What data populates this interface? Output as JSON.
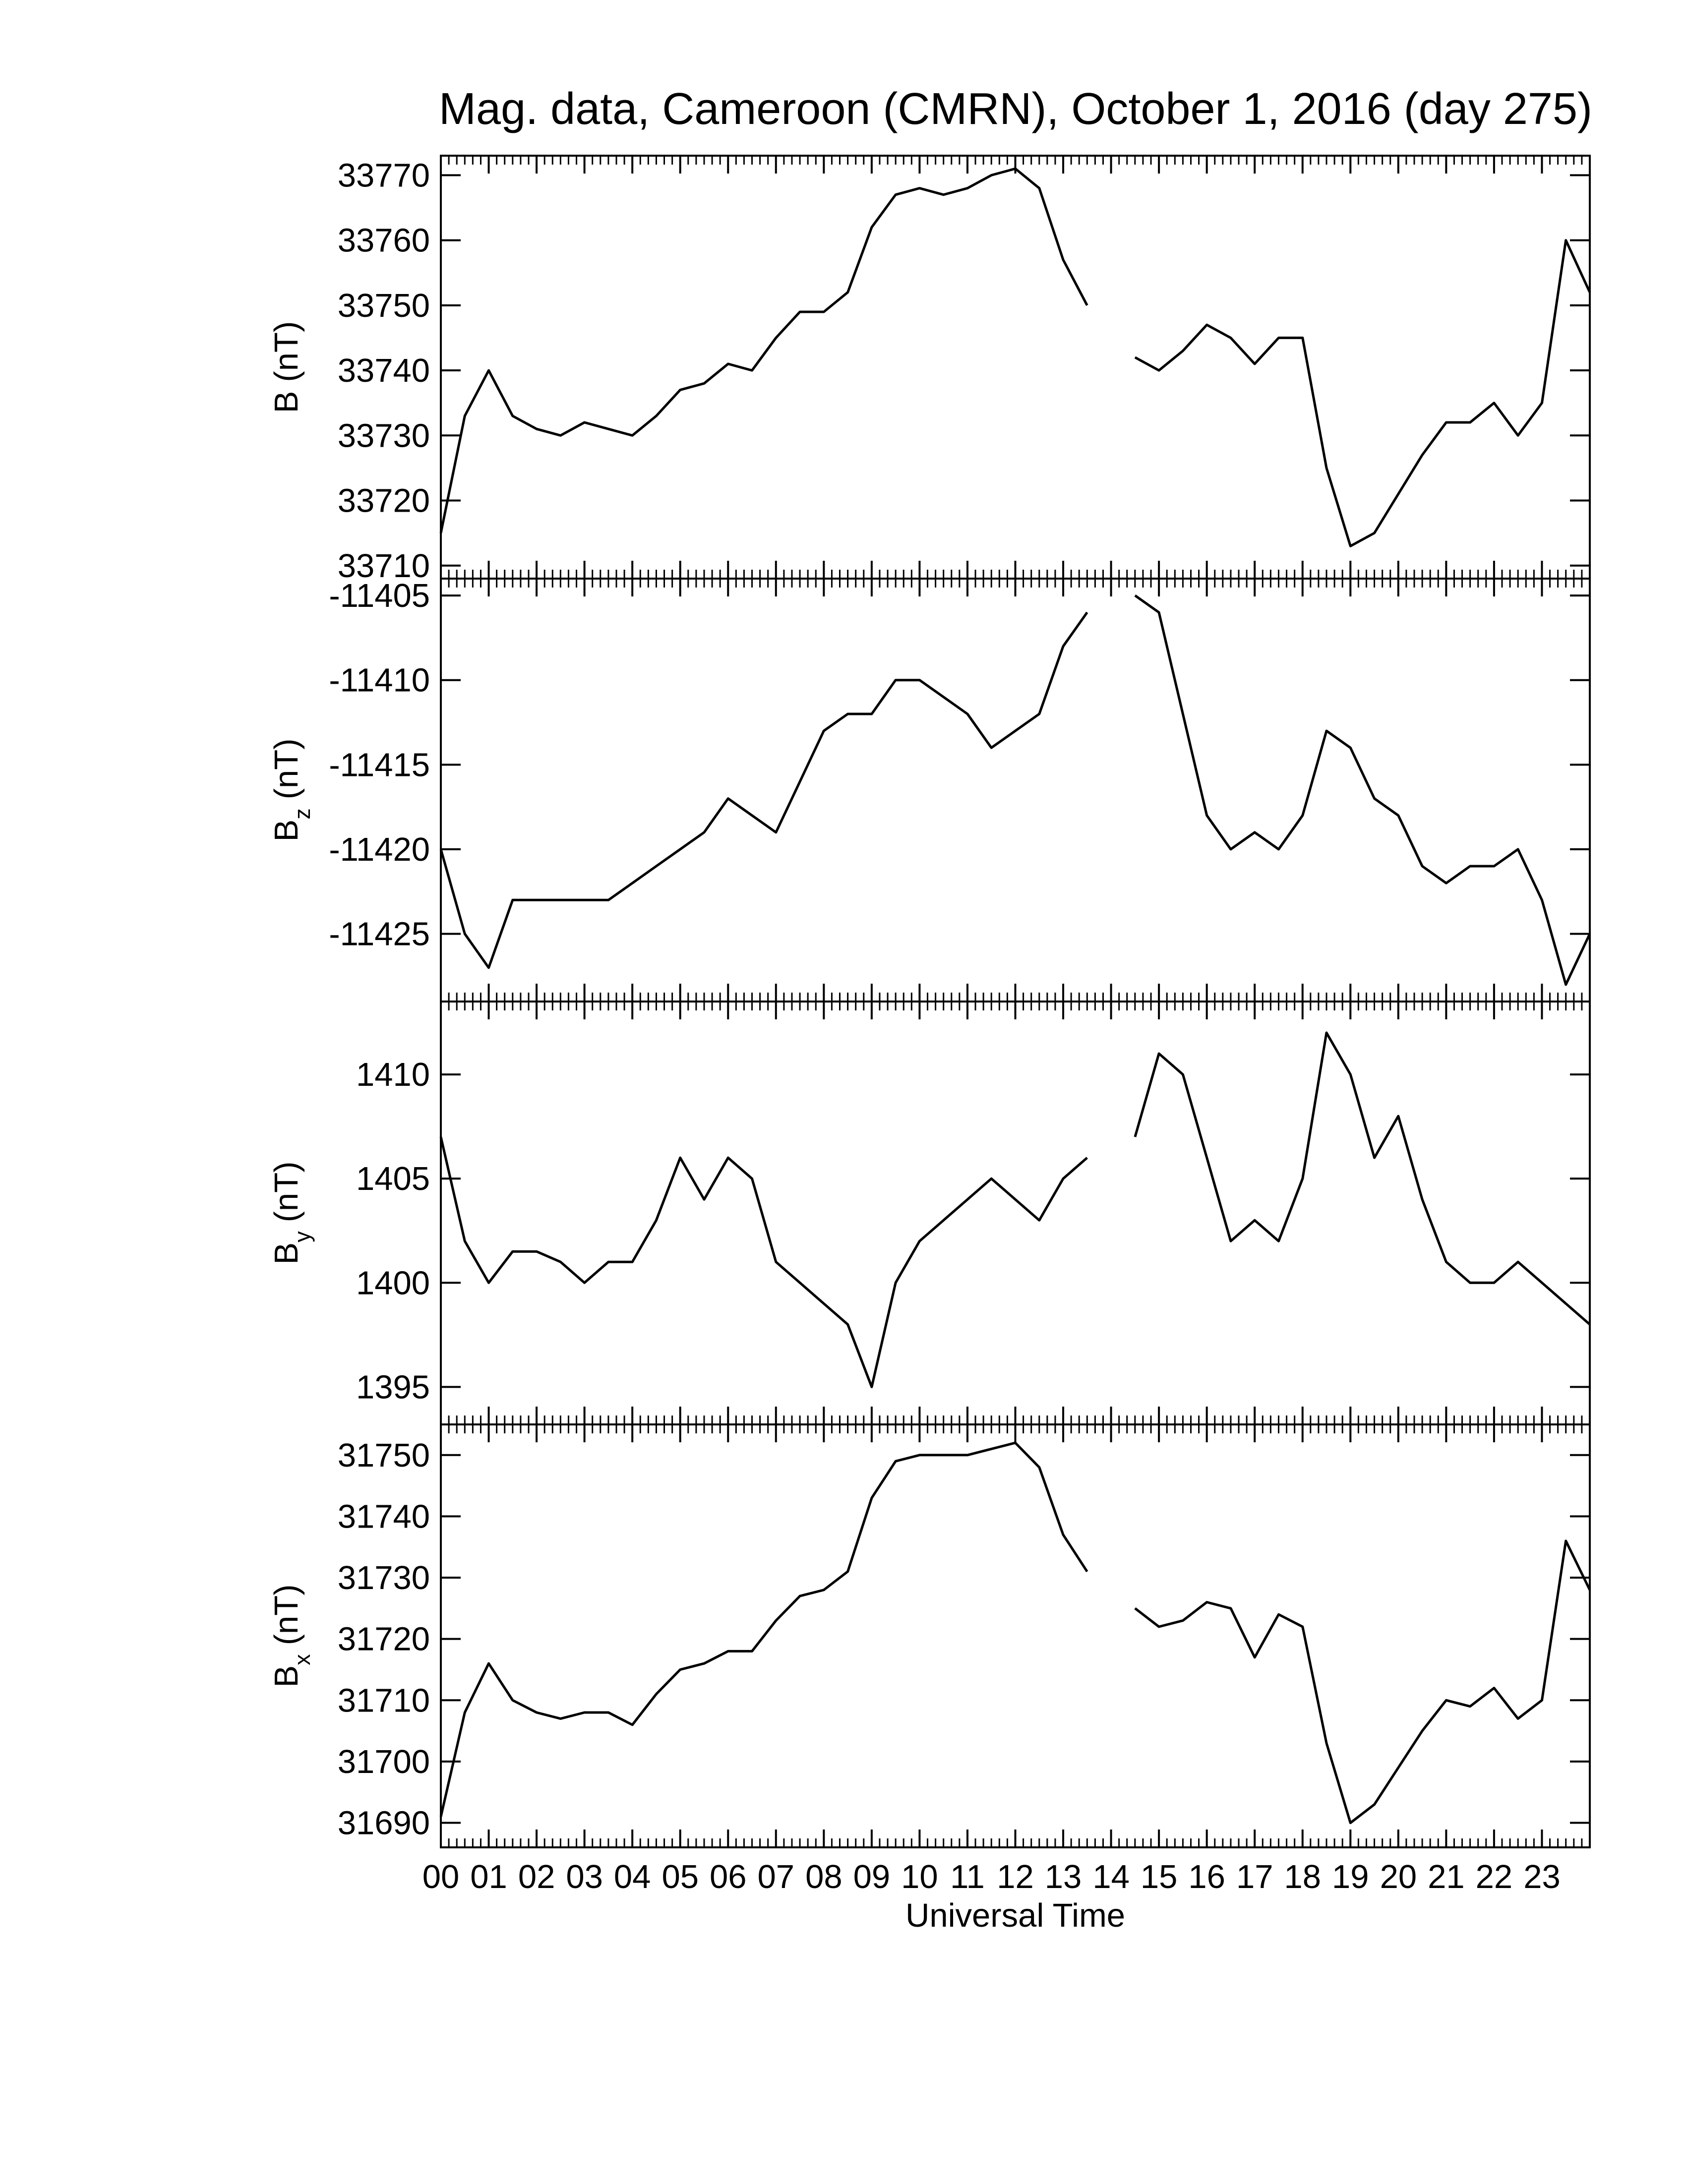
{
  "chart_data": [
    {
      "type": "line",
      "title": "Mag. data, Cameroon (CMRN), October 1, 2016 (day 275)",
      "ylabel": {
        "base": "B",
        "unit": "(nT)"
      },
      "x": [
        0,
        0.5,
        1,
        1.5,
        2,
        2.5,
        3,
        3.5,
        4,
        4.5,
        5,
        5.5,
        6,
        6.5,
        7,
        7.5,
        8,
        8.5,
        9,
        9.5,
        10,
        10.5,
        11,
        11.5,
        12,
        12.5,
        13,
        13.5,
        14,
        14.5,
        15,
        15.5,
        16,
        16.5,
        17,
        17.5,
        18,
        18.5,
        19,
        19.5,
        20,
        20.5,
        21,
        21.5,
        22,
        22.5,
        23,
        23.5,
        24
      ],
      "values": [
        33715,
        33733,
        33740,
        33733,
        33731,
        33730,
        33732,
        33731,
        33730,
        33733,
        33737,
        33738,
        33741,
        33740,
        33745,
        33749,
        33749,
        33752,
        33762,
        33767,
        33768,
        33767,
        33768,
        33770,
        33771,
        33768,
        33757,
        33750,
        null,
        33742,
        33740,
        33743,
        33747,
        33745,
        33741,
        33745,
        33745,
        33725,
        33713,
        33715,
        33721,
        33727,
        33732,
        33732,
        33735,
        33730,
        33735,
        33760,
        33752
      ],
      "color": "#000000",
      "xlim": [
        0,
        24
      ],
      "ylim": [
        33708,
        33773
      ],
      "yticks": [
        33710,
        33720,
        33730,
        33740,
        33750,
        33760,
        33770
      ]
    },
    {
      "type": "line",
      "ylabel": {
        "base": "B",
        "sub": "z",
        "unit": "(nT)"
      },
      "x": [
        0,
        0.5,
        1,
        1.5,
        2,
        2.5,
        3,
        3.5,
        4,
        4.5,
        5,
        5.5,
        6,
        6.5,
        7,
        7.5,
        8,
        8.5,
        9,
        9.5,
        10,
        10.5,
        11,
        11.5,
        12,
        12.5,
        13,
        13.5,
        14,
        14.5,
        15,
        15.5,
        16,
        16.5,
        17,
        17.5,
        18,
        18.5,
        19,
        19.5,
        20,
        20.5,
        21,
        21.5,
        22,
        22.5,
        23,
        23.5,
        24
      ],
      "values": [
        -11420,
        -11425,
        -11427,
        -11423,
        -11423,
        -11423,
        -11423,
        -11423,
        -11422,
        -11421,
        -11420,
        -11419,
        -11417,
        -11418,
        -11419,
        -11416,
        -11413,
        -11412,
        -11412,
        -11410,
        -11410,
        -11411,
        -11412,
        -11414,
        -11413,
        -11412,
        -11408,
        -11406,
        null,
        -11405,
        -11406,
        -11412,
        -11418,
        -11420,
        -11419,
        -11420,
        -11418,
        -11413,
        -11414,
        -11417,
        -11418,
        -11421,
        -11422,
        -11421,
        -11421,
        -11420,
        -11423,
        -11428,
        -11425
      ],
      "color": "#000000",
      "xlim": [
        0,
        24
      ],
      "ylim": [
        -11429,
        -11404
      ],
      "yticks": [
        -11425,
        -11420,
        -11415,
        -11410,
        -11405
      ]
    },
    {
      "type": "line",
      "ylabel": {
        "base": "B",
        "sub": "y",
        "unit": "(nT)"
      },
      "x": [
        0,
        0.5,
        1,
        1.5,
        2,
        2.5,
        3,
        3.5,
        4,
        4.5,
        5,
        5.5,
        6,
        6.5,
        7,
        7.5,
        8,
        8.5,
        9,
        9.5,
        10,
        10.5,
        11,
        11.5,
        12,
        12.5,
        13,
        13.5,
        14,
        14.5,
        15,
        15.5,
        16,
        16.5,
        17,
        17.5,
        18,
        18.5,
        19,
        19.5,
        20,
        20.5,
        21,
        21.5,
        22,
        22.5,
        23,
        23.5,
        24
      ],
      "values": [
        1407,
        1402,
        1400,
        1401.5,
        1401.5,
        1401,
        1400,
        1401,
        1401,
        1403,
        1406,
        1404,
        1406,
        1405,
        1401,
        1400,
        1399,
        1398,
        1395,
        1400,
        1402,
        1403,
        1404,
        1405,
        1404,
        1403,
        1405,
        1406,
        null,
        1407,
        1411,
        1410,
        1406,
        1402,
        1403,
        1402,
        1405,
        1412,
        1410,
        1406,
        1408,
        1404,
        1401,
        1400,
        1400,
        1401,
        1400,
        1399,
        1398
      ],
      "color": "#000000",
      "xlim": [
        0,
        24
      ],
      "ylim": [
        1393.2,
        1413.5
      ],
      "yticks": [
        1395,
        1400,
        1405,
        1410
      ]
    },
    {
      "type": "line",
      "ylabel": {
        "base": "B",
        "sub": "x",
        "unit": "(nT)"
      },
      "xlabel": "Universal Time",
      "x": [
        0,
        0.5,
        1,
        1.5,
        2,
        2.5,
        3,
        3.5,
        4,
        4.5,
        5,
        5.5,
        6,
        6.5,
        7,
        7.5,
        8,
        8.5,
        9,
        9.5,
        10,
        10.5,
        11,
        11.5,
        12,
        12.5,
        13,
        13.5,
        14,
        14.5,
        15,
        15.5,
        16,
        16.5,
        17,
        17.5,
        18,
        18.5,
        19,
        19.5,
        20,
        20.5,
        21,
        21.5,
        22,
        22.5,
        23,
        23.5,
        24
      ],
      "values": [
        31691,
        31708,
        31716,
        31710,
        31708,
        31707,
        31708,
        31708,
        31706,
        31711,
        31715,
        31716,
        31718,
        31718,
        31723,
        31727,
        31728,
        31731,
        31743,
        31749,
        31750,
        31750,
        31750,
        31751,
        31752,
        31748,
        31737,
        31731,
        null,
        31725,
        31722,
        31723,
        31726,
        31725,
        31717,
        31724,
        31722,
        31703,
        31690,
        31693,
        31699,
        31705,
        31710,
        31709,
        31712,
        31707,
        31710,
        31736,
        31728
      ],
      "color": "#000000",
      "xlim": [
        0,
        24
      ],
      "ylim": [
        31686,
        31755
      ],
      "yticks": [
        31690,
        31700,
        31710,
        31720,
        31730,
        31740,
        31750
      ],
      "xticks": [
        {
          "value": 0,
          "label": "00"
        },
        {
          "value": 1,
          "label": "01"
        },
        {
          "value": 2,
          "label": "02"
        },
        {
          "value": 3,
          "label": "03"
        },
        {
          "value": 4,
          "label": "04"
        },
        {
          "value": 5,
          "label": "05"
        },
        {
          "value": 6,
          "label": "06"
        },
        {
          "value": 7,
          "label": "07"
        },
        {
          "value": 8,
          "label": "08"
        },
        {
          "value": 9,
          "label": "09"
        },
        {
          "value": 10,
          "label": "10"
        },
        {
          "value": 11,
          "label": "11"
        },
        {
          "value": 12,
          "label": "12"
        },
        {
          "value": 13,
          "label": "13"
        },
        {
          "value": 14,
          "label": "14"
        },
        {
          "value": 15,
          "label": "15"
        },
        {
          "value": 16,
          "label": "16"
        },
        {
          "value": 17,
          "label": "17"
        },
        {
          "value": 18,
          "label": "18"
        },
        {
          "value": 19,
          "label": "19"
        },
        {
          "value": 20,
          "label": "20"
        },
        {
          "value": 21,
          "label": "21"
        },
        {
          "value": 22,
          "label": "22"
        },
        {
          "value": 23,
          "label": "23"
        }
      ]
    }
  ]
}
